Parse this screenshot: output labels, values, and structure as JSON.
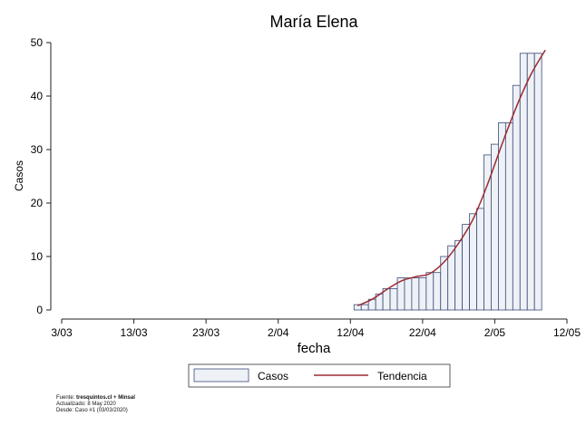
{
  "chart_data": {
    "type": "bar",
    "title": "María Elena",
    "xlabel": "fecha",
    "ylabel": "Casos",
    "x_ticks": [
      "3/03",
      "13/03",
      "23/03",
      "2/04",
      "12/04",
      "22/04",
      "2/05",
      "12/05"
    ],
    "y_ticks": [
      "0",
      "10",
      "20",
      "30",
      "40",
      "50"
    ],
    "ylim": [
      0,
      50
    ],
    "x_axis_start": "2020-03-03",
    "x_axis_end": "2020-05-12",
    "grid": false,
    "legend_position": "bottom",
    "series": [
      {
        "name": "Casos",
        "type": "bar",
        "color": "#eef2f6",
        "edge_color": "#3a4a78",
        "dates": [
          "2020-04-13",
          "2020-04-14",
          "2020-04-15",
          "2020-04-16",
          "2020-04-17",
          "2020-04-18",
          "2020-04-19",
          "2020-04-20",
          "2020-04-21",
          "2020-04-22",
          "2020-04-23",
          "2020-04-24",
          "2020-04-25",
          "2020-04-26",
          "2020-04-27",
          "2020-04-28",
          "2020-04-29",
          "2020-04-30",
          "2020-05-01",
          "2020-05-02",
          "2020-05-03",
          "2020-05-04",
          "2020-05-05",
          "2020-05-06",
          "2020-05-07",
          "2020-05-08"
        ],
        "values": [
          1,
          1,
          2,
          3,
          4,
          4,
          6,
          6,
          6,
          6,
          7,
          7,
          10,
          12,
          13,
          16,
          18,
          19,
          29,
          31,
          35,
          35,
          42,
          48,
          48,
          48
        ]
      },
      {
        "name": "Tendencia",
        "type": "line",
        "color": "#9b2b33",
        "dates": [
          "2020-04-13",
          "2020-04-15",
          "2020-04-17",
          "2020-04-19",
          "2020-04-21",
          "2020-04-23",
          "2020-04-25",
          "2020-04-27",
          "2020-04-29",
          "2020-05-01",
          "2020-05-03",
          "2020-05-05",
          "2020-05-07",
          "2020-05-09"
        ],
        "values": [
          0.8,
          2.0,
          3.8,
          5.4,
          6.2,
          6.8,
          9.0,
          12.5,
          17.0,
          23.5,
          31.0,
          38.0,
          44.0,
          48.6
        ]
      }
    ]
  },
  "legend": [
    {
      "label": "Casos"
    },
    {
      "label": "Tendencia"
    }
  ],
  "source": {
    "fuente_prefix": "Fuente: ",
    "fuente_bold": "tresquintos.cl + Minsal",
    "actualizado": "Actualizado: 8 May 2020",
    "desde": "Desde: Caso #1  (03/03/2020)"
  }
}
